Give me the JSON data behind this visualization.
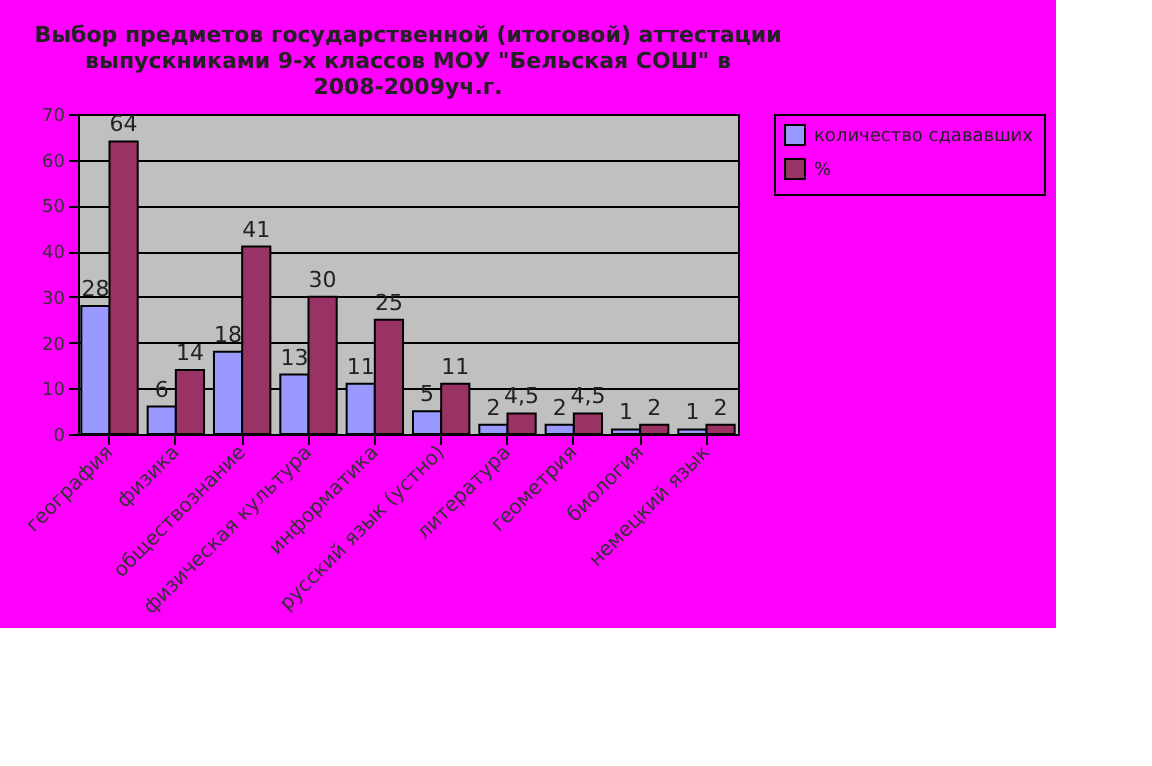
{
  "chart_data": {
    "type": "bar",
    "title": "Выбор предметов государственной (итоговой) аттестации выпускниками 9-х классов МОУ \"Бельская СОШ\" в 2008-2009уч.г.",
    "categories": [
      "география",
      "физика",
      "обществознание",
      "физическая культура",
      "информатика",
      "русский язык (устно)",
      "литература",
      "геометрия",
      "биология",
      "немецкий язык"
    ],
    "series": [
      {
        "name": "количество сдававших",
        "color": "#9999ff",
        "values": [
          28,
          6,
          18,
          13,
          11,
          5,
          2,
          2,
          1,
          1
        ],
        "value_labels": [
          "28",
          "6",
          "18",
          "13",
          "11",
          "5",
          "2",
          "2",
          "1",
          "1"
        ]
      },
      {
        "name": "%",
        "color": "#993366",
        "values": [
          64,
          14,
          41,
          30,
          25,
          11,
          4.5,
          4.5,
          2,
          2
        ],
        "value_labels": [
          "64",
          "14",
          "41",
          "30",
          "25",
          "11",
          "4,5",
          "4,5",
          "2",
          "2"
        ]
      }
    ],
    "ylim": [
      0,
      70
    ],
    "yticks": [
      0,
      10,
      20,
      30,
      40,
      50,
      60,
      70
    ],
    "grid": "y",
    "legend": "right"
  }
}
